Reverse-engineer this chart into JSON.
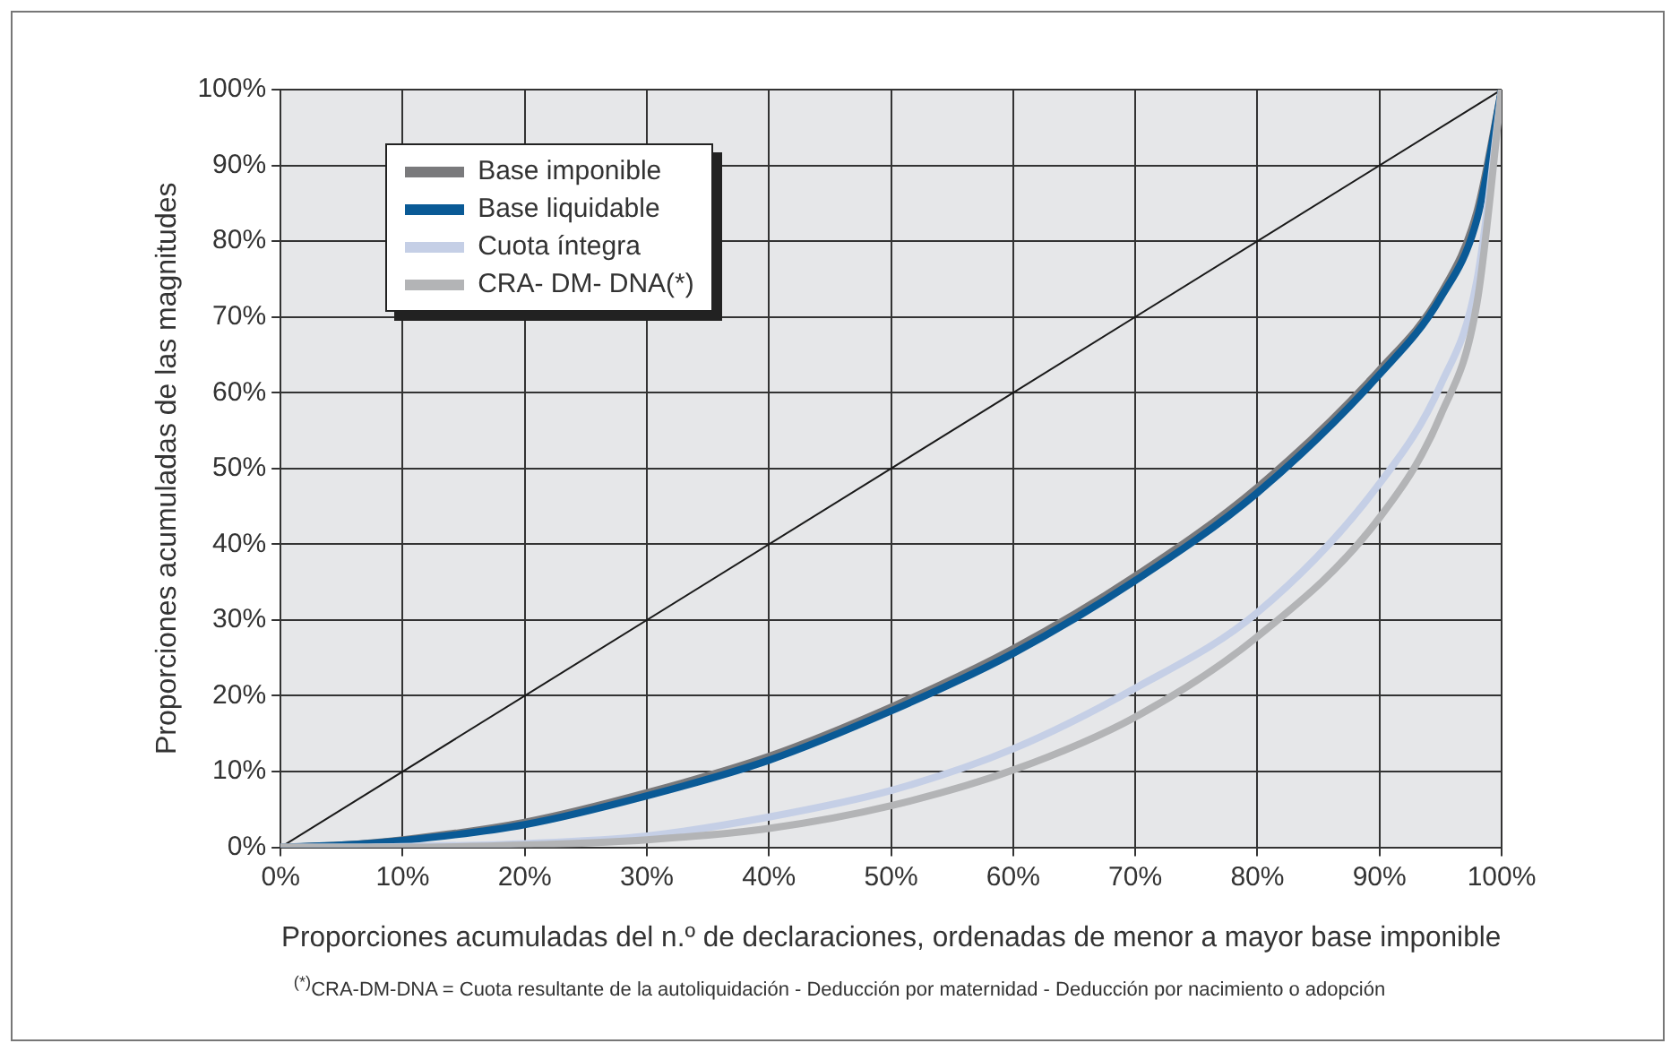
{
  "chart_data": {
    "type": "line",
    "xlabel": "Proporciones acumuladas del n.º de declaraciones, ordenadas de menor a mayor base imponible",
    "ylabel": "Proporciones acumuladas de las magnitudes",
    "annotations": [
      "$^{(*)}$CRA-DM-DNA = Cuota resultante de la autoliquidación - Deducción por maternidad - Deducción por nacimiento o adopción"
    ],
    "x": [
      0,
      5,
      10,
      20,
      30,
      40,
      50,
      60,
      70,
      80,
      90,
      95,
      98,
      100
    ],
    "series": [
      {
        "color": "#1a1a1a",
        "x": [
          0,
          100
        ],
        "values": [
          0,
          100
        ]
      },
      {
        "name": "Base imponible",
        "color": "#7a7a7c",
        "values": [
          0,
          0.3,
          1,
          3.3,
          7.2,
          12,
          18.5,
          26.2,
          35.8,
          47.5,
          63,
          73,
          84,
          100
        ]
      },
      {
        "name": "Base liquidable",
        "color": "#0a5a96",
        "values": [
          0,
          0.3,
          0.9,
          3,
          6.8,
          11.5,
          18,
          25.6,
          35.2,
          46.8,
          62.4,
          72.5,
          83,
          100
        ]
      },
      {
        "name": "Cuota íntegra",
        "color": "#c5cfe6",
        "values": [
          0,
          0,
          0.1,
          0.5,
          1.5,
          4,
          7.5,
          13,
          21,
          31,
          48,
          61,
          75,
          100
        ]
      },
      {
        "name": "CRA- DM- DNA(*)",
        "color": "#b3b4b6",
        "values": [
          0,
          0,
          0,
          0.3,
          1,
          2.5,
          5.5,
          10.2,
          17.2,
          27.8,
          43.5,
          57,
          72,
          100
        ]
      }
    ],
    "xlim": [
      0,
      100
    ],
    "ylim": [
      0,
      100
    ],
    "xticks": [
      {
        "value": 0,
        "label": "0%"
      },
      {
        "value": 10,
        "label": "10%"
      },
      {
        "value": 20,
        "label": "20%"
      },
      {
        "value": 30,
        "label": "30%"
      },
      {
        "value": 40,
        "label": "40%"
      },
      {
        "value": 50,
        "label": "50%"
      },
      {
        "value": 60,
        "label": "60%"
      },
      {
        "value": 70,
        "label": "70%"
      },
      {
        "value": 80,
        "label": "80%"
      },
      {
        "value": 90,
        "label": "90%"
      },
      {
        "value": 100,
        "label": "100%"
      }
    ],
    "yticks": [
      {
        "value": 0,
        "label": "0%"
      },
      {
        "value": 10,
        "label": "10%"
      },
      {
        "value": 20,
        "label": "20%"
      },
      {
        "value": 30,
        "label": "30%"
      },
      {
        "value": 40,
        "label": "40%"
      },
      {
        "value": 50,
        "label": "50%"
      },
      {
        "value": 60,
        "label": "60%"
      },
      {
        "value": 70,
        "label": "70%"
      },
      {
        "value": 80,
        "label": "80%"
      },
      {
        "value": 90,
        "label": "90%"
      },
      {
        "value": 100,
        "label": "100%"
      }
    ],
    "grid": true,
    "legend": "top left",
    "marker": "none",
    "line_style": "solid"
  }
}
